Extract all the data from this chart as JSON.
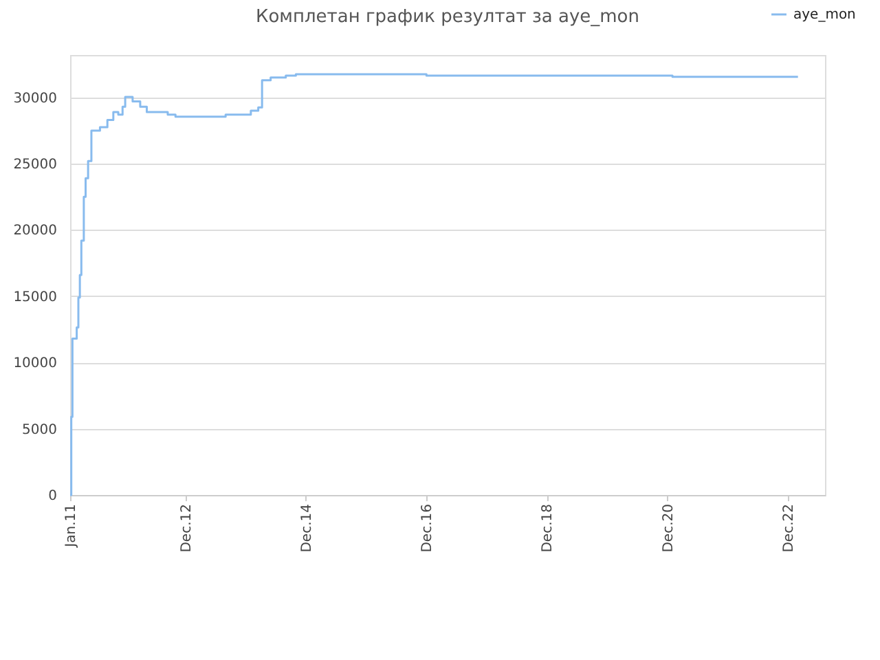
{
  "chart_data": {
    "type": "step",
    "title": "Комплетан график резултат за aye_mon",
    "x": [
      "2011-01-01",
      "2011-01-08",
      "2011-01-15",
      "2011-02-10",
      "2011-02-20",
      "2011-03-01",
      "2011-03-10",
      "2011-03-25",
      "2011-04-05",
      "2011-04-20",
      "2011-05-10",
      "2011-07-01",
      "2011-08-15",
      "2011-09-20",
      "2011-10-20",
      "2011-11-15",
      "2011-12-01",
      "2012-01-15",
      "2012-03-01",
      "2012-04-10",
      "2012-08-15",
      "2012-10-01",
      "2013-08-01",
      "2014-01-01",
      "2014-02-15",
      "2014-03-10",
      "2014-05-01",
      "2014-08-01",
      "2014-10-01",
      "2016-12-01",
      "2021-01-01",
      "2023-02-01"
    ],
    "series": [
      {
        "name": "aye_mon",
        "color": "#88bbee",
        "values": [
          0,
          5900,
          11800,
          12650,
          14900,
          16600,
          19200,
          22500,
          23900,
          25200,
          27500,
          27750,
          28300,
          28900,
          28700,
          29300,
          30030,
          29700,
          29300,
          28900,
          28700,
          28550,
          28700,
          29000,
          29250,
          31300,
          31500,
          31650,
          31750,
          31650,
          31550,
          31550
        ]
      }
    ],
    "xlim": [
      "2011-01-01",
      "2023-07-15"
    ],
    "xticks": [
      {
        "value": "2011-01-01",
        "label": "Jan.11"
      },
      {
        "value": "2012-12-01",
        "label": "Dec.12"
      },
      {
        "value": "2014-12-01",
        "label": "Dec.14"
      },
      {
        "value": "2016-12-01",
        "label": "Dec.16"
      },
      {
        "value": "2018-12-01",
        "label": "Dec.18"
      },
      {
        "value": "2020-12-01",
        "label": "Dec.20"
      },
      {
        "value": "2022-12-01",
        "label": "Dec.22"
      }
    ],
    "ylim": [
      0,
      33200
    ],
    "yticks": [
      0,
      5000,
      10000,
      15000,
      20000,
      25000,
      30000
    ],
    "grid": "y",
    "legend": "top right",
    "marker": "none",
    "line_style": "solid"
  }
}
